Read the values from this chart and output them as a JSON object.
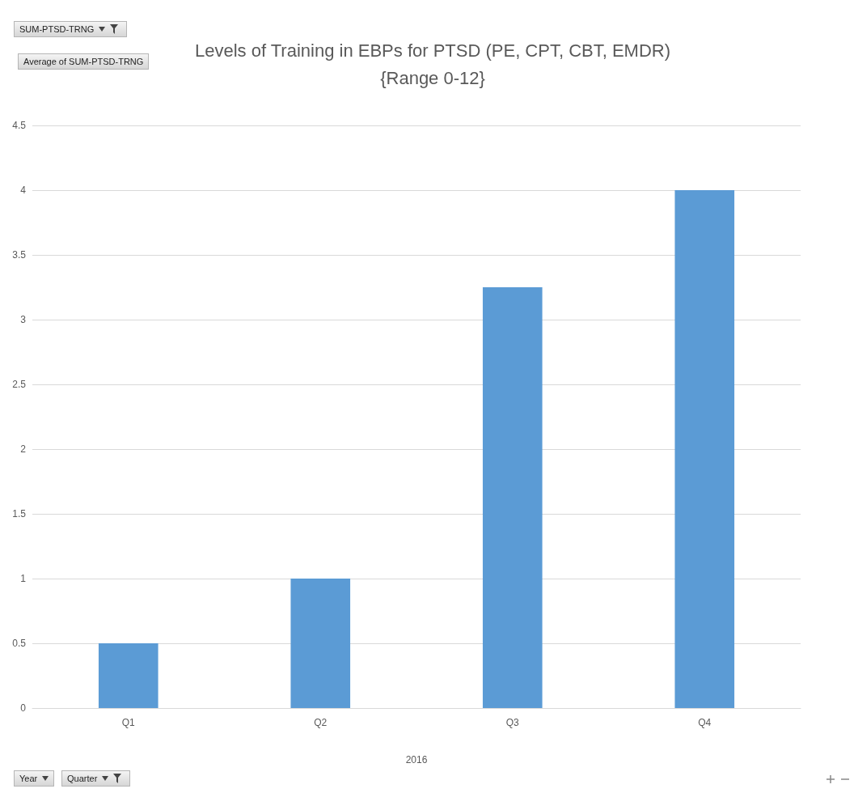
{
  "chart_data": {
    "type": "bar",
    "title": "Levels of Training in EBPs for PTSD (PE, CPT, CBT, EMDR)\n{Range 0-12}",
    "xlabel": "2016",
    "categories": [
      "Q1",
      "Q2",
      "Q3",
      "Q4"
    ],
    "values": [
      0.5,
      1,
      3.25,
      4
    ],
    "color": "#5b9bd5",
    "ylim": [
      0,
      4.5
    ],
    "yticks": [
      0,
      0.5,
      1,
      1.5,
      2,
      2.5,
      3,
      3.5,
      4,
      4.5
    ],
    "grid": "y",
    "annotations": [
      "SUM-PTSD-TRNG",
      "Average of SUM-PTSD-TRNG",
      "Year",
      "Quarter"
    ]
  }
}
